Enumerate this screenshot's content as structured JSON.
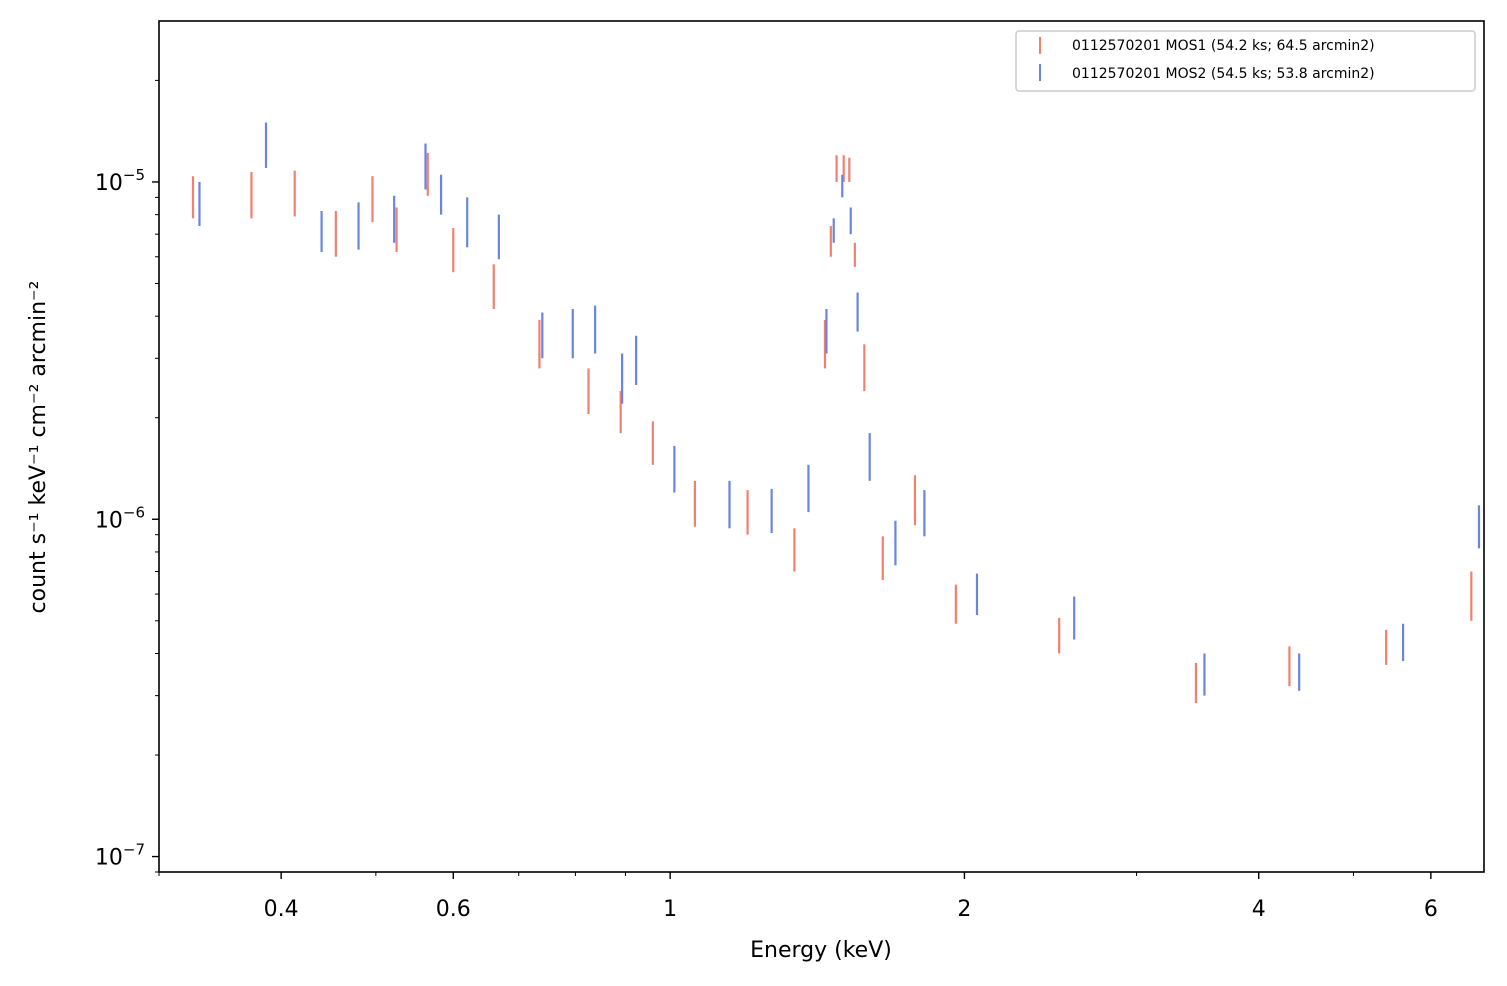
{
  "chart_data": {
    "type": "scatter",
    "xlabel": "Energy (keV)",
    "ylabel": "count s⁻¹ keV⁻¹ cm⁻² arcmin⁻²",
    "xscale": "log",
    "yscale": "log",
    "xlim": [
      0.3,
      6.8
    ],
    "ylim": [
      9e-08,
      3e-05
    ],
    "x_ticks": [
      {
        "value": 0.4,
        "label": "0.4"
      },
      {
        "value": 0.6,
        "label": "0.6"
      },
      {
        "value": 1,
        "label": "1"
      },
      {
        "value": 2,
        "label": "2"
      },
      {
        "value": 4,
        "label": "4"
      },
      {
        "value": 6,
        "label": "6"
      }
    ],
    "y_ticks": [
      {
        "value": 1e-07,
        "mantissa": "10",
        "exponent": "−7"
      },
      {
        "value": 1e-06,
        "mantissa": "10",
        "exponent": "−6"
      },
      {
        "value": 1e-05,
        "mantissa": "10",
        "exponent": "−5"
      }
    ],
    "grid": false,
    "legend_position": "top-right",
    "series": [
      {
        "name": "0112570201 MOS1 (54.2 ks; 64.5 arcmin2)",
        "color": "#f08070",
        "points": [
          {
            "x": 0.325,
            "y_low": 7.8e-06,
            "y_high": 1.04e-05
          },
          {
            "x": 0.373,
            "y_low": 7.8e-06,
            "y_high": 1.07e-05
          },
          {
            "x": 0.413,
            "y_low": 7.9e-06,
            "y_high": 1.08e-05
          },
          {
            "x": 0.455,
            "y_low": 6e-06,
            "y_high": 8.2e-06
          },
          {
            "x": 0.496,
            "y_low": 7.6e-06,
            "y_high": 1.04e-05
          },
          {
            "x": 0.525,
            "y_low": 6.2e-06,
            "y_high": 8.4e-06
          },
          {
            "x": 0.565,
            "y_low": 9.1e-06,
            "y_high": 1.22e-05
          },
          {
            "x": 0.6,
            "y_low": 5.4e-06,
            "y_high": 7.3e-06
          },
          {
            "x": 0.66,
            "y_low": 4.2e-06,
            "y_high": 5.7e-06
          },
          {
            "x": 0.735,
            "y_low": 2.8e-06,
            "y_high": 3.9e-06
          },
          {
            "x": 0.825,
            "y_low": 2.05e-06,
            "y_high": 2.8e-06
          },
          {
            "x": 0.89,
            "y_low": 1.8e-06,
            "y_high": 2.4e-06
          },
          {
            "x": 0.96,
            "y_low": 1.45e-06,
            "y_high": 1.95e-06
          },
          {
            "x": 1.06,
            "y_low": 9.5e-07,
            "y_high": 1.3e-06
          },
          {
            "x": 1.2,
            "y_low": 9e-07,
            "y_high": 1.22e-06
          },
          {
            "x": 1.34,
            "y_low": 7e-07,
            "y_high": 9.4e-07
          },
          {
            "x": 1.44,
            "y_low": 2.8e-06,
            "y_high": 3.9e-06
          },
          {
            "x": 1.46,
            "y_low": 6e-06,
            "y_high": 7.4e-06
          },
          {
            "x": 1.48,
            "y_low": 1e-05,
            "y_high": 1.2e-05
          },
          {
            "x": 1.505,
            "y_low": 1e-05,
            "y_high": 1.2e-05
          },
          {
            "x": 1.525,
            "y_low": 1e-05,
            "y_high": 1.18e-05
          },
          {
            "x": 1.545,
            "y_low": 5.6e-06,
            "y_high": 6.6e-06
          },
          {
            "x": 1.58,
            "y_low": 2.4e-06,
            "y_high": 3.3e-06
          },
          {
            "x": 1.65,
            "y_low": 6.6e-07,
            "y_high": 8.9e-07
          },
          {
            "x": 1.78,
            "y_low": 9.6e-07,
            "y_high": 1.35e-06
          },
          {
            "x": 1.96,
            "y_low": 4.9e-07,
            "y_high": 6.4e-07
          },
          {
            "x": 2.5,
            "y_low": 4e-07,
            "y_high": 5.1e-07
          },
          {
            "x": 3.45,
            "y_low": 2.85e-07,
            "y_high": 3.75e-07
          },
          {
            "x": 4.3,
            "y_low": 3.2e-07,
            "y_high": 4.2e-07
          },
          {
            "x": 5.4,
            "y_low": 3.7e-07,
            "y_high": 4.7e-07
          },
          {
            "x": 6.6,
            "y_low": 5e-07,
            "y_high": 7e-07
          }
        ]
      },
      {
        "name": "0112570201 MOS2 (54.5 ks; 53.8 arcmin2)",
        "color": "#6a85e0",
        "points": [
          {
            "x": 0.33,
            "y_low": 7.4e-06,
            "y_high": 1e-05
          },
          {
            "x": 0.386,
            "y_low": 1.1e-05,
            "y_high": 1.5e-05
          },
          {
            "x": 0.44,
            "y_low": 6.2e-06,
            "y_high": 8.2e-06
          },
          {
            "x": 0.48,
            "y_low": 6.3e-06,
            "y_high": 8.7e-06
          },
          {
            "x": 0.522,
            "y_low": 6.6e-06,
            "y_high": 9.1e-06
          },
          {
            "x": 0.562,
            "y_low": 9.5e-06,
            "y_high": 1.3e-05
          },
          {
            "x": 0.583,
            "y_low": 8e-06,
            "y_high": 1.05e-05
          },
          {
            "x": 0.62,
            "y_low": 6.4e-06,
            "y_high": 9e-06
          },
          {
            "x": 0.668,
            "y_low": 5.9e-06,
            "y_high": 8e-06
          },
          {
            "x": 0.74,
            "y_low": 3e-06,
            "y_high": 4.1e-06
          },
          {
            "x": 0.795,
            "y_low": 3e-06,
            "y_high": 4.2e-06
          },
          {
            "x": 0.838,
            "y_low": 3.1e-06,
            "y_high": 4.3e-06
          },
          {
            "x": 0.893,
            "y_low": 2.2e-06,
            "y_high": 3.1e-06
          },
          {
            "x": 0.923,
            "y_low": 2.5e-06,
            "y_high": 3.5e-06
          },
          {
            "x": 1.01,
            "y_low": 1.2e-06,
            "y_high": 1.65e-06
          },
          {
            "x": 1.15,
            "y_low": 9.4e-07,
            "y_high": 1.3e-06
          },
          {
            "x": 1.27,
            "y_low": 9.1e-07,
            "y_high": 1.23e-06
          },
          {
            "x": 1.385,
            "y_low": 1.05e-06,
            "y_high": 1.45e-06
          },
          {
            "x": 1.445,
            "y_low": 3.1e-06,
            "y_high": 4.2e-06
          },
          {
            "x": 1.47,
            "y_low": 6.6e-06,
            "y_high": 7.8e-06
          },
          {
            "x": 1.5,
            "y_low": 9e-06,
            "y_high": 1.05e-05
          },
          {
            "x": 1.53,
            "y_low": 7e-06,
            "y_high": 8.4e-06
          },
          {
            "x": 1.555,
            "y_low": 3.6e-06,
            "y_high": 4.7e-06
          },
          {
            "x": 1.6,
            "y_low": 1.3e-06,
            "y_high": 1.8e-06
          },
          {
            "x": 1.7,
            "y_low": 7.3e-07,
            "y_high": 9.9e-07
          },
          {
            "x": 1.82,
            "y_low": 8.9e-07,
            "y_high": 1.22e-06
          },
          {
            "x": 2.06,
            "y_low": 5.2e-07,
            "y_high": 6.9e-07
          },
          {
            "x": 2.59,
            "y_low": 4.4e-07,
            "y_high": 5.9e-07
          },
          {
            "x": 3.52,
            "y_low": 3e-07,
            "y_high": 4e-07
          },
          {
            "x": 4.4,
            "y_low": 3.1e-07,
            "y_high": 4e-07
          },
          {
            "x": 5.62,
            "y_low": 3.8e-07,
            "y_high": 4.9e-07
          },
          {
            "x": 6.72,
            "y_low": 8.2e-07,
            "y_high": 1.1e-06
          }
        ]
      }
    ]
  }
}
